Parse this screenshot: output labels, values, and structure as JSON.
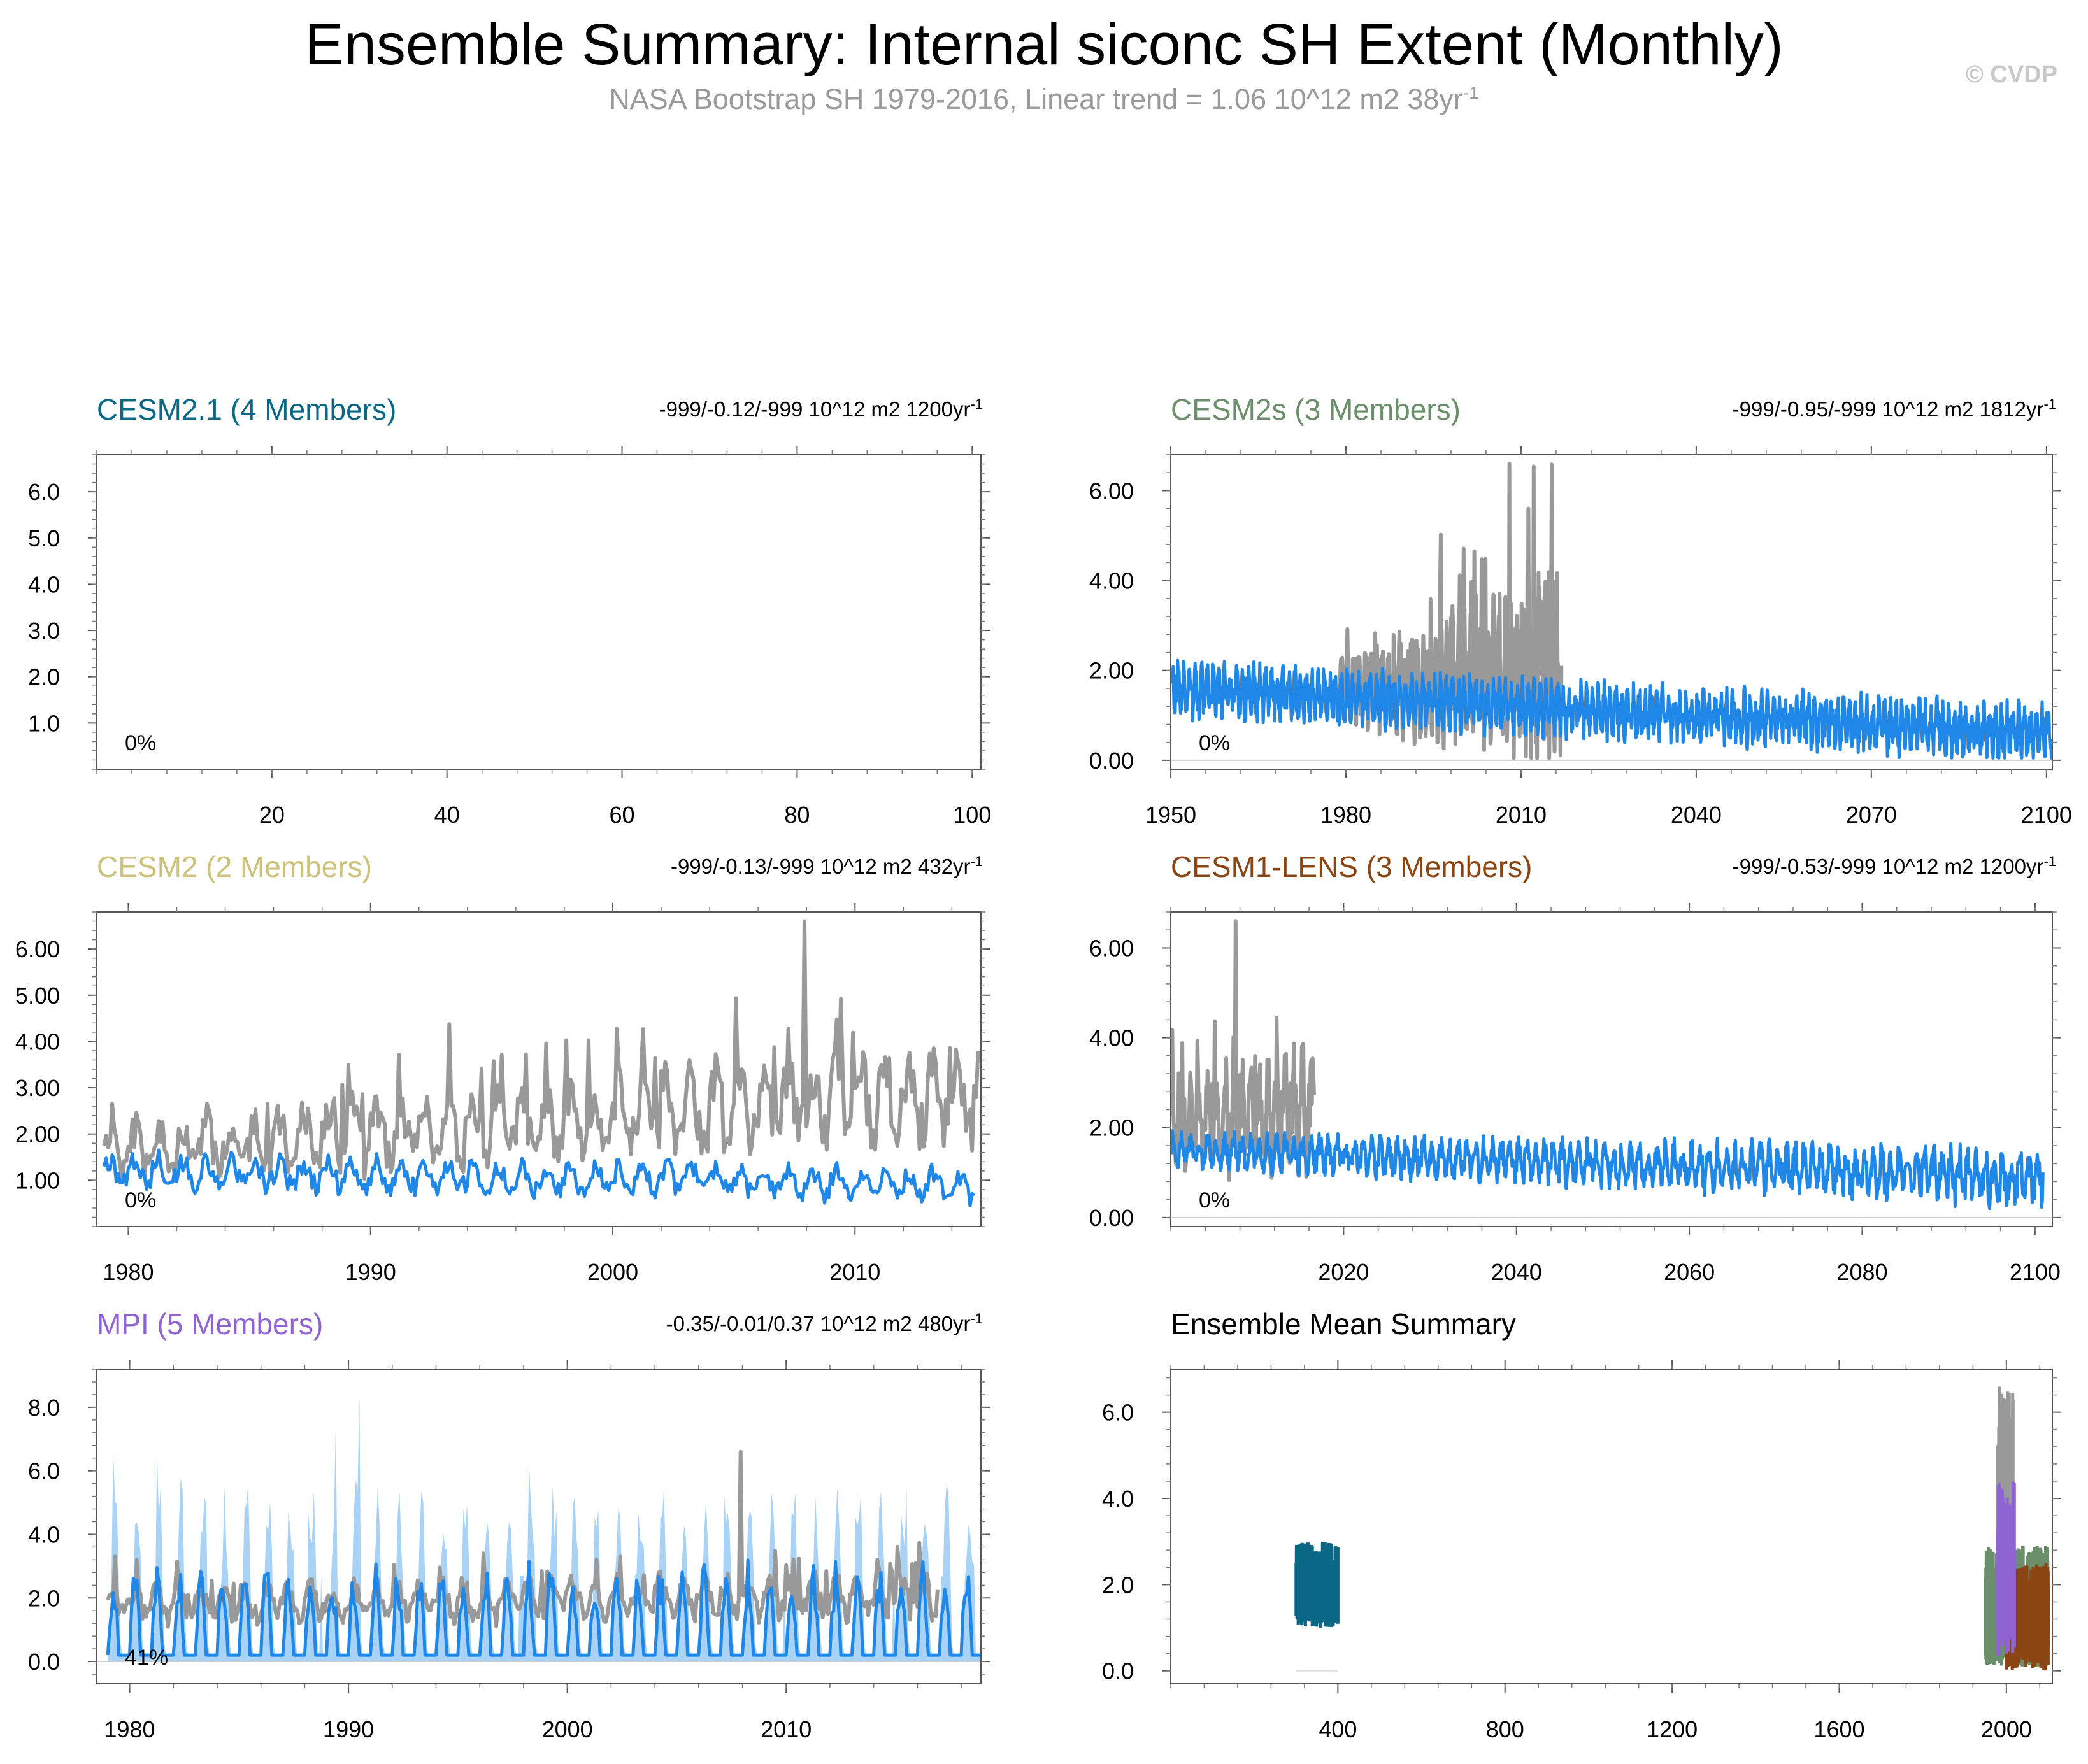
{
  "header": {
    "title": "Ensemble Summary: Internal siconc SH Extent (Monthly)",
    "subtitle": "NASA Bootstrap SH 1979-2016, Linear trend = 1.06 10^12 m2 38yr",
    "subtitle_sup": "-1",
    "copyright": "© CVDP"
  },
  "colors": {
    "cesm21": "#0a6887",
    "cesm2s": "#6a8f6a",
    "cesm2": "#cdc27a",
    "cesm1lens": "#8b4513",
    "mpi": "#8f63d2",
    "obs": "#999999",
    "ens": "#1e87e8",
    "spread": "#a9d2f7"
  },
  "chart_data": [
    {
      "id": "cesm21",
      "type": "line",
      "title": "CESM2.1 (4 Members)",
      "trend_text": "-999/-0.12/-999 10^12 m2 1200yr",
      "trend_sup": "-1",
      "percent_label": "0%",
      "xlim": [
        0,
        101
      ],
      "ylim": [
        0,
        6.8
      ],
      "xticks": [
        20,
        40,
        60,
        80,
        100
      ],
      "yticks": [
        1.0,
        2.0,
        3.0,
        4.0,
        5.0,
        6.0
      ],
      "ytick_labels": [
        "1.0",
        "2.0",
        "3.0",
        "4.0",
        "5.0",
        "6.0"
      ],
      "series": []
    },
    {
      "id": "cesm2s",
      "type": "line",
      "title": "CESM2s (3 Members)",
      "trend_text": "-999/-0.95/-999 10^12 m2 1812yr",
      "trend_sup": "-1",
      "percent_label": "0%",
      "xlim": [
        1950,
        2101
      ],
      "ylim": [
        -0.2,
        6.8
      ],
      "xticks": [
        1950,
        1980,
        2010,
        2040,
        2070,
        2100
      ],
      "yticks": [
        0,
        2,
        4,
        6
      ],
      "ytick_labels": [
        "0.00",
        "2.00",
        "4.00",
        "6.00"
      ],
      "series": [
        {
          "name": "NASA Bootstrap SH (obs)",
          "role": "obs",
          "x_start": 1979,
          "x_end": 2016.9,
          "base": [
            1.6,
            2.0
          ],
          "amp": [
            0.9,
            2.6
          ],
          "peak": 6.6,
          "peak_at": 2008
        },
        {
          "name": "Ensemble mean",
          "role": "ens",
          "x_start": 1950,
          "x_end": 2100.9,
          "base": [
            1.6,
            0.6
          ],
          "amp": [
            0.75,
            0.75
          ],
          "zero_line": 0.0
        }
      ]
    },
    {
      "id": "cesm2",
      "type": "line",
      "title": "CESM2 (2 Members)",
      "trend_text": "-999/-0.13/-999 10^12 m2 432yr",
      "trend_sup": "-1",
      "percent_label": "0%",
      "xlim": [
        1978.7,
        2015.2
      ],
      "ylim": [
        0.0,
        6.8
      ],
      "xticks": [
        1980,
        1990,
        2000,
        2010
      ],
      "yticks": [
        1,
        2,
        3,
        4,
        5,
        6
      ],
      "ytick_labels": [
        "1.00",
        "2.00",
        "3.00",
        "4.00",
        "5.00",
        "6.00"
      ],
      "series": [
        {
          "name": "NASA Bootstrap SH (obs)",
          "role": "obs",
          "x_start": 1979,
          "x_end": 2015.1,
          "base": [
            1.6,
            2.9
          ],
          "amp": [
            0.9,
            1.5
          ],
          "peak": 6.6,
          "peak_at": 2007.9
        },
        {
          "name": "Ensemble mean",
          "role": "ens",
          "x_start": 1979,
          "x_end": 2014.9,
          "base": [
            1.2,
            0.9
          ],
          "amp": [
            0.5,
            0.5
          ]
        }
      ]
    },
    {
      "id": "cesm1lens",
      "type": "line",
      "title": "CESM1-LENS (3 Members)",
      "trend_text": "-999/-0.53/-999 10^12 m2 1200yr",
      "trend_sup": "-1",
      "percent_label": "0%",
      "xlim": [
        2000,
        2102
      ],
      "ylim": [
        -0.2,
        6.8
      ],
      "xticks": [
        2020,
        2040,
        2060,
        2080,
        2100
      ],
      "yticks": [
        0,
        2,
        4,
        6
      ],
      "ytick_labels": [
        "0.00",
        "2.00",
        "4.00",
        "6.00"
      ],
      "series": [
        {
          "name": "NASA Bootstrap SH (obs)",
          "role": "obs",
          "x_start": 2000,
          "x_end": 2016.6,
          "base": [
            2.0,
            2.4
          ],
          "amp": [
            1.2,
            1.8
          ],
          "peak": 6.6,
          "peak_at": 2007.5
        },
        {
          "name": "Ensemble mean",
          "role": "ens",
          "x_start": 2000,
          "x_end": 2100.9,
          "base": [
            1.5,
            0.9
          ],
          "amp": [
            0.5,
            0.8
          ],
          "zero_line": 0.0
        }
      ]
    },
    {
      "id": "mpi",
      "type": "line",
      "title": "MPI (5 Members)",
      "trend_text": "-0.35/-0.01/0.37 10^12 m2 480yr",
      "trend_sup": "-1",
      "percent_label": "41%",
      "xlim": [
        1978.5,
        2018.9
      ],
      "ylim": [
        -0.7,
        9.2
      ],
      "xticks": [
        1980,
        1990,
        2000,
        2010
      ],
      "yticks": [
        0,
        2,
        4,
        6,
        8
      ],
      "ytick_labels": [
        "0.0",
        "2.0",
        "4.0",
        "6.0",
        "8.0"
      ],
      "series": [
        {
          "name": "Ensemble spread",
          "role": "spread",
          "x_start": 1979,
          "x_end": 2018.9,
          "top": 5.0,
          "peak": 8.4,
          "peak_at": 1990.5
        },
        {
          "name": "NASA Bootstrap SH (obs)",
          "role": "obs",
          "x_start": 1979,
          "x_end": 2016.9,
          "base": [
            1.8,
            2.1
          ],
          "amp": [
            0.8,
            1.0
          ],
          "peak": 6.6,
          "peak_at": 2007.9
        },
        {
          "name": "Ensemble mean",
          "role": "ens",
          "x_start": 1979,
          "x_end": 2018.9,
          "base": [
            0.3,
            0.3
          ],
          "amp": [
            2.5,
            2.5
          ],
          "zero_line": 0.0
        }
      ]
    },
    {
      "id": "summary",
      "type": "line",
      "title": "Ensemble Mean Summary",
      "trend_text": "",
      "trend_sup": "",
      "percent_label": "",
      "xlim": [
        0,
        2110
      ],
      "ylim": [
        -0.3,
        7.0
      ],
      "xticks": [
        400,
        800,
        1200,
        1600,
        2000
      ],
      "yticks": [
        0,
        2,
        4,
        6
      ],
      "ytick_labels": [
        "0.0",
        "2.0",
        "4.0",
        "6.0"
      ],
      "series": [
        {
          "name": "CESM2.1",
          "color_key": "cesm21",
          "x_start": 300,
          "x_end": 400,
          "low": 1.0,
          "high": 3.0
        },
        {
          "name": "CESM2s",
          "color_key": "cesm2s",
          "x_start": 1950,
          "x_end": 2100,
          "low": 0.1,
          "high": 2.9
        },
        {
          "name": "NASA Bootstrap SH (obs)",
          "color_key": "obs",
          "x_start": 1979,
          "x_end": 2016,
          "low": 1.6,
          "high": 6.6
        },
        {
          "name": "CESM1-LENS",
          "color_key": "cesm1lens",
          "x_start": 2000,
          "x_end": 2100,
          "low": 0.0,
          "high": 2.5
        },
        {
          "name": "MPI",
          "color_key": "mpi",
          "x_start": 1979,
          "x_end": 2019,
          "low": 0.3,
          "high": 4.4
        }
      ]
    }
  ]
}
